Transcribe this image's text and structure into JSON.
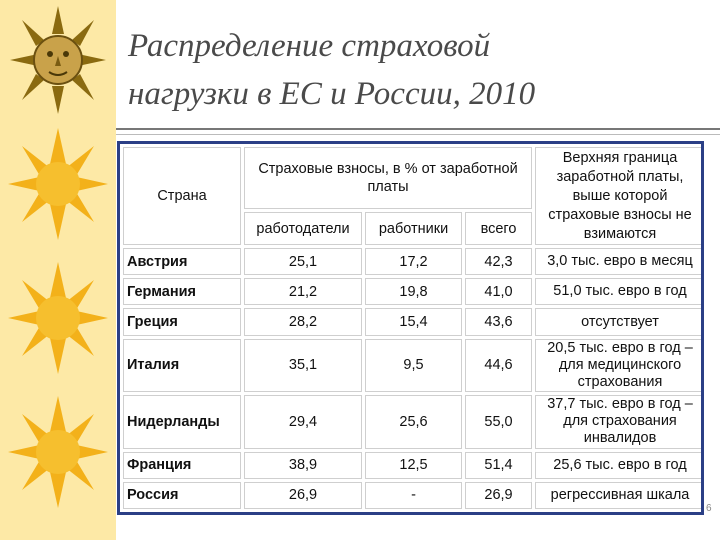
{
  "slide": {
    "title_line1": "Распределение страховой",
    "title_line2": "нагрузки в ЕС и России, 2010",
    "page_number": "6"
  },
  "table": {
    "header": {
      "country": "Страна",
      "contributions": "Страховые взносы, в % от заработной платы",
      "employers": "работодатели",
      "employees": "работники",
      "total": "всего",
      "ceiling": "Верхняя граница заработной платы, выше которой страховые взносы не взимаются"
    },
    "rows": [
      {
        "country": "Австрия",
        "employers": "25,1",
        "employees": "17,2",
        "total": "42,3",
        "ceiling": "3,0 тыс. евро в месяц"
      },
      {
        "country": "Германия",
        "employers": "21,2",
        "employees": "19,8",
        "total": "41,0",
        "ceiling": "51,0 тыс. евро в год"
      },
      {
        "country": "Греция",
        "employers": "28,2",
        "employees": "15,4",
        "total": "43,6",
        "ceiling": "отсутствует"
      },
      {
        "country": "Италия",
        "employers": "35,1",
        "employees": "9,5",
        "total": "44,6",
        "ceiling": "20,5 тыс. евро в год – для медицинского страхования"
      },
      {
        "country": "Нидерланды",
        "employers": "29,4",
        "employees": "25,6",
        "total": "55,0",
        "ceiling": "37,7 тыс. евро в год – для страхования инвалидов"
      },
      {
        "country": "Франция",
        "employers": "38,9",
        "employees": "12,5",
        "total": "51,4",
        "ceiling": "25,6 тыс. евро в год"
      },
      {
        "country": "Россия",
        "employers": "26,9",
        "employees": "-",
        "total": "26,9",
        "ceiling": "регрессивная шкала"
      }
    ]
  }
}
